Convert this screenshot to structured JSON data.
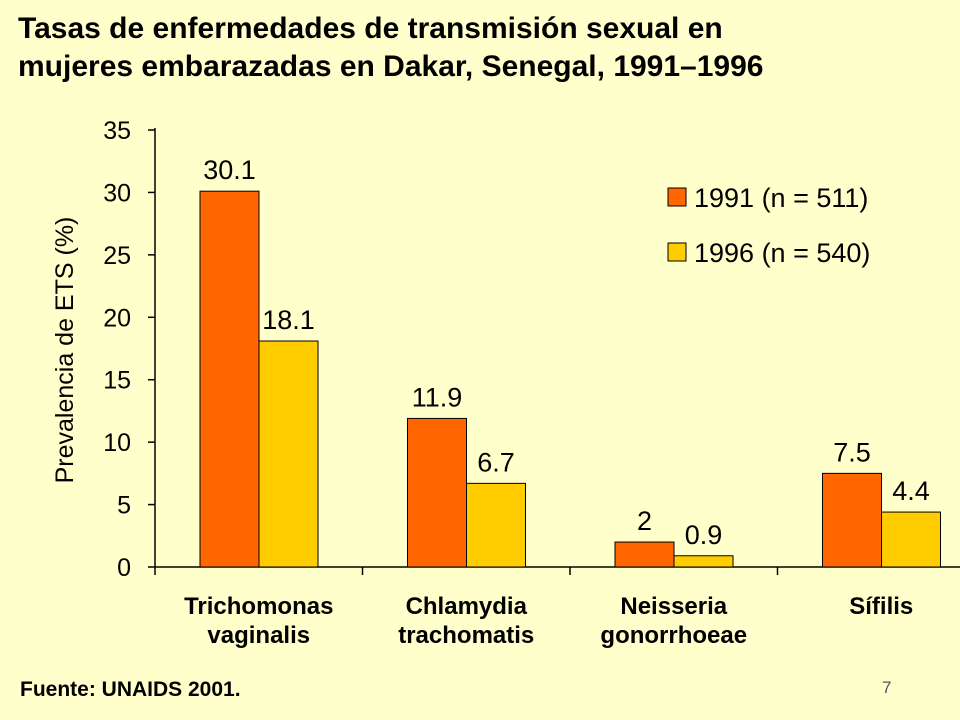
{
  "title_line1": "Tasas de enfermedades de transmisión sexual en",
  "title_line2": "mujeres embarazadas en Dakar, Senegal, 1991–1996",
  "source": "Fuente: UNAIDS 2001.",
  "page_number": "7",
  "colors": {
    "background": "#FFFFCC",
    "series_1991": "#FF6600",
    "series_1996": "#FFCC00"
  },
  "chart_data": {
    "type": "bar",
    "categories": [
      [
        "Trichomonas",
        "vaginalis"
      ],
      [
        "Chlamydia",
        "trachomatis"
      ],
      [
        "Neisseria",
        "gonorrhoeae"
      ],
      [
        "Sífilis"
      ]
    ],
    "series": [
      {
        "name": "1991 (n = 511)",
        "values": [
          30.1,
          11.9,
          2,
          7.5
        ],
        "labels": [
          "30.1",
          "11.9",
          "2",
          "7.5"
        ],
        "color": "#FF6600"
      },
      {
        "name": "1996 (n = 540)",
        "values": [
          18.1,
          6.7,
          0.9,
          4.4
        ],
        "labels": [
          "18.1",
          "6.7",
          "0.9",
          "4.4"
        ],
        "color": "#FFCC00"
      }
    ],
    "ylabel": "Prevalencia de ETS (%)",
    "ylim": [
      0,
      35
    ],
    "yticks": [
      0,
      5,
      10,
      15,
      20,
      25,
      30,
      35
    ],
    "grid": false,
    "legend_position": "top-right"
  }
}
